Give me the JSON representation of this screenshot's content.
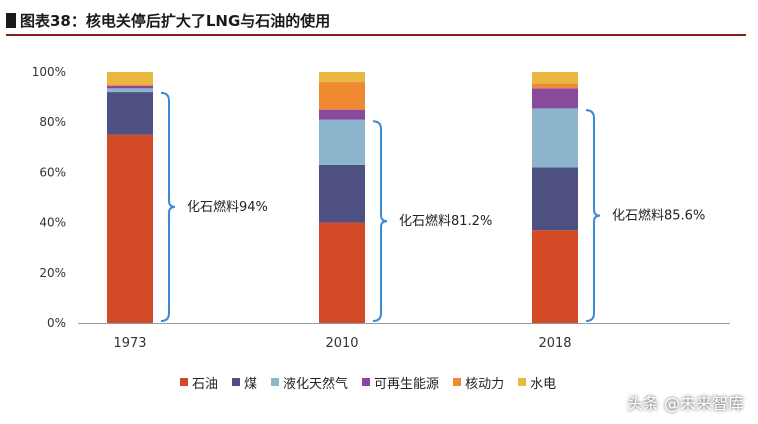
{
  "header": {
    "title": "图表38：核电关停后扩大了LNG与石油的使用"
  },
  "chart_data": {
    "type": "bar",
    "stacked": true,
    "categories": [
      "1973",
      "2010",
      "2018"
    ],
    "y_ticks": [
      "0%",
      "20%",
      "40%",
      "60%",
      "80%",
      "100%"
    ],
    "ylim": [
      0,
      100
    ],
    "grid": false,
    "legend_position": "bottom",
    "series": [
      {
        "name": "石油",
        "color": "#d24a26",
        "values": [
          75,
          40,
          37
        ]
      },
      {
        "name": "煤",
        "color": "#4d5080",
        "values": [
          17,
          23,
          25
        ]
      },
      {
        "name": "液化天然气",
        "color": "#8cb4cd",
        "values": [
          1.5,
          18,
          23.5
        ]
      },
      {
        "name": "可再生能源",
        "color": "#8a4a9c",
        "values": [
          1,
          4,
          8
        ]
      },
      {
        "name": "核动力",
        "color": "#f08a32",
        "values": [
          0.5,
          11,
          2
        ]
      },
      {
        "name": "水电",
        "color": "#e8b840",
        "values": [
          5,
          4,
          4.5
        ]
      }
    ],
    "annotations": [
      {
        "category": "1973",
        "label": "化石燃料94%",
        "bracket_top": 92.5
      },
      {
        "category": "2010",
        "label": "化石燃料81.2%",
        "bracket_top": 81.2
      },
      {
        "category": "2018",
        "label": "化石燃料85.6%",
        "bracket_top": 85.6
      }
    ]
  },
  "watermark": "头条 @未来智库"
}
